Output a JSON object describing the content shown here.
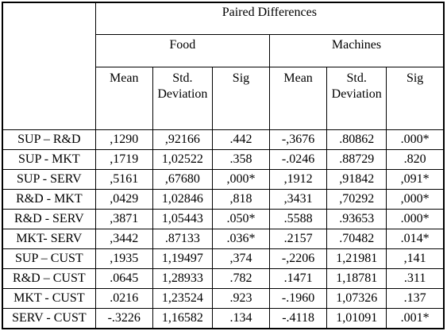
{
  "table": {
    "header": {
      "title": "Paired Differences",
      "groups": [
        "Food",
        "Machines"
      ],
      "columns": [
        "Mean",
        "Std. Deviation",
        "Sig",
        "Mean",
        "Std. Deviation",
        "Sig"
      ]
    },
    "rows": [
      {
        "label": "SUP – R&D",
        "cells": [
          ",1290",
          ",92166",
          ".442",
          "-,3676",
          ".80862",
          ".000*"
        ]
      },
      {
        "label": "SUP - MKT",
        "cells": [
          ",1719",
          "1,02522",
          ".358",
          "-.0246",
          ".88729",
          ".820"
        ]
      },
      {
        "label": "SUP - SERV",
        "cells": [
          ",5161",
          ",67680",
          ",000*",
          ",1912",
          ",91842",
          ",091*"
        ]
      },
      {
        "label": "R&D - MKT",
        "cells": [
          ",0429",
          "1,02846",
          ",818",
          ",3431",
          ",70292",
          ",000*"
        ]
      },
      {
        "label": "R&D - SERV",
        "cells": [
          ",3871",
          "1,05443",
          ".050*",
          ".5588",
          ".93653",
          ".000*"
        ]
      },
      {
        "label": "MKT- SERV",
        "cells": [
          ",3442",
          ".87133",
          ".036*",
          ".2157",
          ".70482",
          ".014*"
        ]
      },
      {
        "label": "SUP – CUST",
        "cells": [
          ",1935",
          "1,19497",
          ",374",
          "-,2206",
          "1,21981",
          ",141"
        ]
      },
      {
        "label": "R&D – CUST",
        "cells": [
          ".0645",
          "1,28933",
          ".782",
          ".1471",
          "1,18781",
          ".311"
        ]
      },
      {
        "label": "MKT - CUST",
        "cells": [
          ".0216",
          "1,23524",
          ".923",
          "-.1960",
          "1,07326",
          ".137"
        ]
      },
      {
        "label": "SERV - CUST",
        "cells": [
          "-.3226",
          "1,16582",
          ".134",
          "-.4118",
          "1,01091",
          ".001*"
        ]
      }
    ]
  }
}
